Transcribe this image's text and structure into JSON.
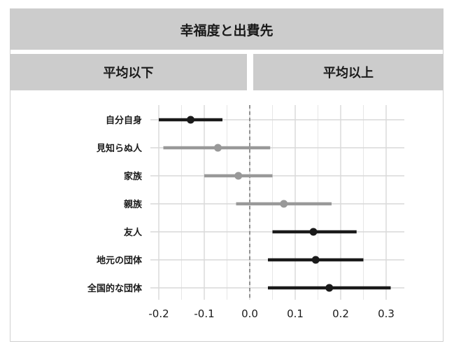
{
  "title": "幸福度と出費先",
  "panels": [
    "平均以下",
    "平均以上"
  ],
  "colors": {
    "below_average": "#999999",
    "above_average": "#1a1a1a",
    "strip": "#cccccc",
    "grid": "#d9d9d9",
    "zero_line": "#555555"
  },
  "chart_data": {
    "type": "scatter",
    "subtype": "point-range (coefficient plot)",
    "title": "幸福度と出費先",
    "xlabel": "",
    "ylabel": "",
    "xlim": [
      -0.2,
      0.3
    ],
    "xticks": [
      -0.2,
      -0.1,
      0.0,
      0.1,
      0.2,
      0.3
    ],
    "xtick_labels": [
      "-0.2",
      "-0.1",
      "0.0",
      "0.1",
      "0.2",
      "0.3"
    ],
    "zero_line": "dashed vertical line at x = 0",
    "grid": true,
    "categories": [
      "自分自身",
      "見知らぬ人",
      "家族",
      "親族",
      "友人",
      "地元の団体",
      "全国的な団体"
    ],
    "series": [
      {
        "category": "自分自身",
        "estimate": -0.13,
        "low": -0.2,
        "high": -0.06,
        "color": "#1a1a1a"
      },
      {
        "category": "見知らぬ人",
        "estimate": -0.07,
        "low": -0.19,
        "high": 0.045,
        "color": "#999999"
      },
      {
        "category": "家族",
        "estimate": -0.025,
        "low": -0.1,
        "high": 0.05,
        "color": "#999999"
      },
      {
        "category": "親族",
        "estimate": 0.075,
        "low": -0.03,
        "high": 0.18,
        "color": "#999999"
      },
      {
        "category": "友人",
        "estimate": 0.14,
        "low": 0.05,
        "high": 0.235,
        "color": "#1a1a1a"
      },
      {
        "category": "地元の団体",
        "estimate": 0.145,
        "low": 0.04,
        "high": 0.25,
        "color": "#1a1a1a"
      },
      {
        "category": "全国的な団体",
        "estimate": 0.175,
        "low": 0.04,
        "high": 0.31,
        "color": "#1a1a1a"
      }
    ]
  }
}
